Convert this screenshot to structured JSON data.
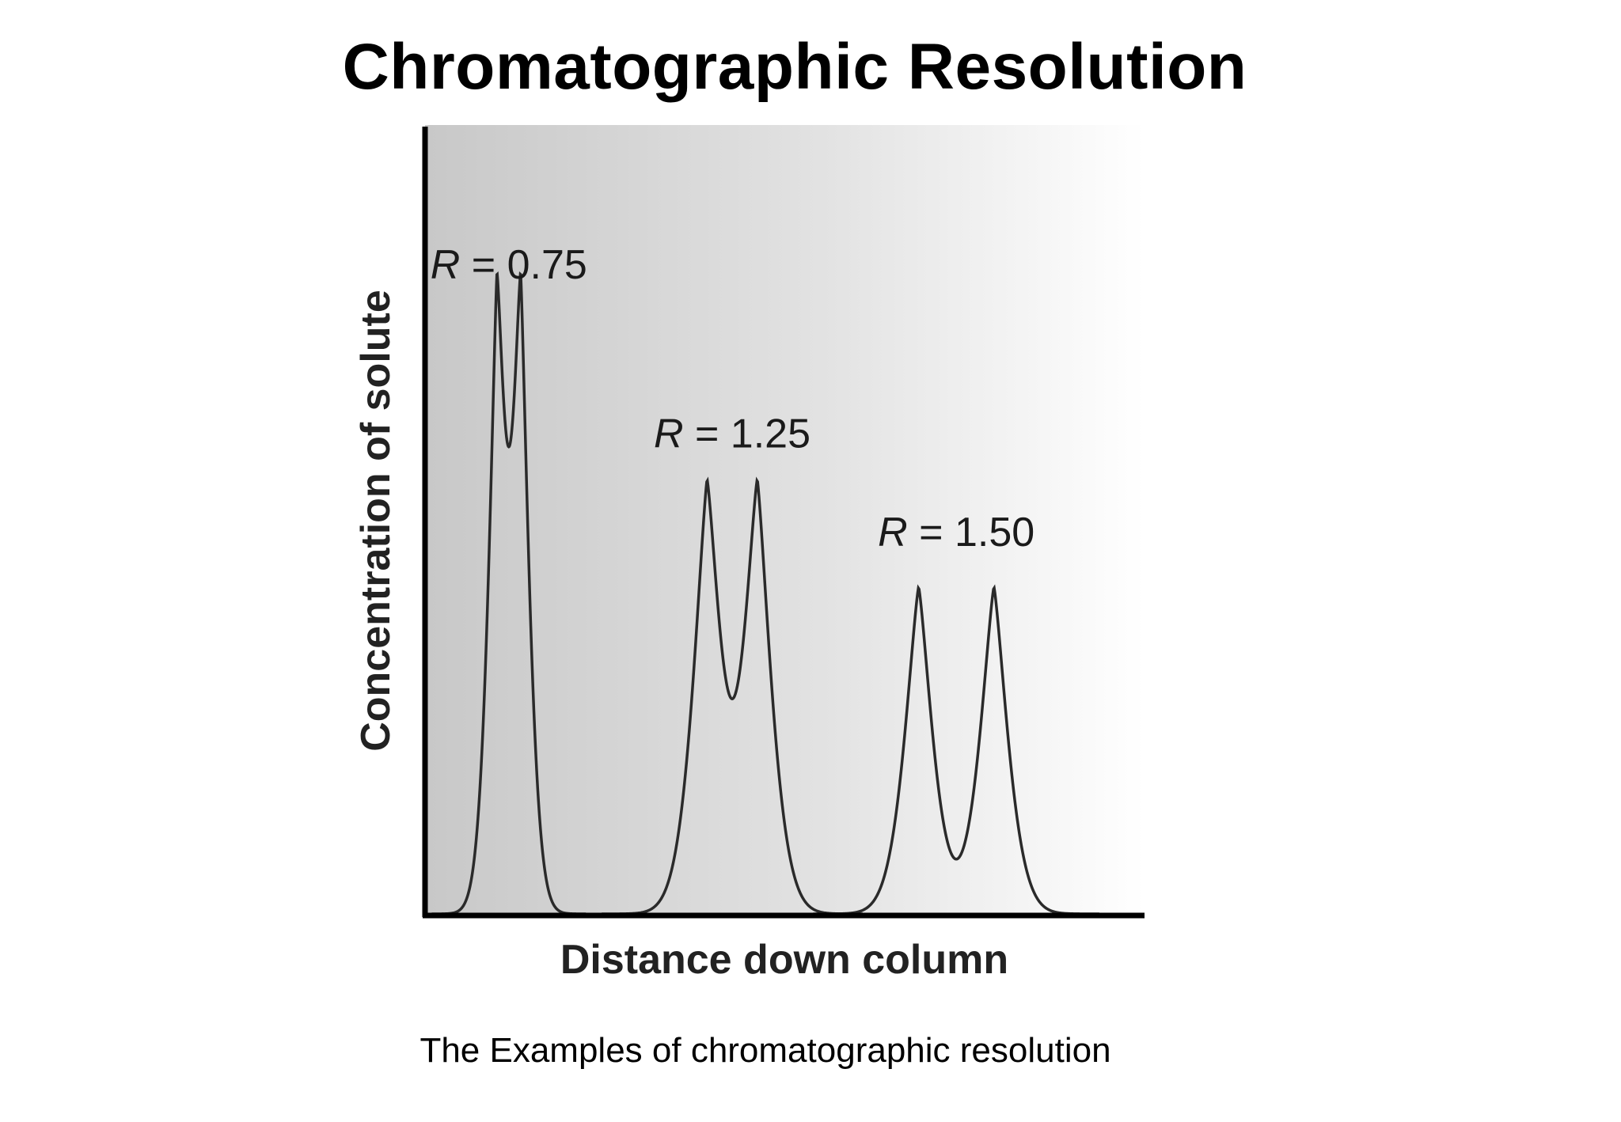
{
  "title": "Chromatographic Resolution",
  "caption": "The Examples of chromatographic resolution",
  "chart_data": {
    "type": "line",
    "title": "Chromatographic Resolution",
    "xlabel": "Distance down column",
    "ylabel": "Concentration of solute",
    "ticks": false,
    "grid": false,
    "background": "left-to-right gray gradient",
    "x_range": [
      0,
      100
    ],
    "y_range": [
      0,
      100
    ],
    "series": [
      {
        "label_var": "R",
        "label_eq": " = ",
        "label_val": "0.75",
        "resolution": 0.75,
        "peaks": [
          {
            "center": 9.7,
            "height": 75.5,
            "sigma": 1.3
          },
          {
            "center": 13.0,
            "height": 75.5,
            "sigma": 1.3
          }
        ]
      },
      {
        "label_var": "R",
        "label_eq": " = ",
        "label_val": "1.25",
        "resolution": 1.25,
        "peaks": [
          {
            "center": 39.0,
            "height": 54.0,
            "sigma": 2.1
          },
          {
            "center": 46.0,
            "height": 54.0,
            "sigma": 2.1
          }
        ]
      },
      {
        "label_var": "R",
        "label_eq": " = ",
        "label_val": "1.50",
        "resolution": 1.5,
        "peaks": [
          {
            "center": 68.5,
            "height": 41.5,
            "sigma": 2.1
          },
          {
            "center": 79.0,
            "height": 41.5,
            "sigma": 2.1
          }
        ]
      }
    ],
    "colors": {
      "line": "#2a2a2a",
      "axis": "#000000",
      "gradient_start": "#c8c8c8",
      "gradient_end": "#ffffff"
    }
  }
}
